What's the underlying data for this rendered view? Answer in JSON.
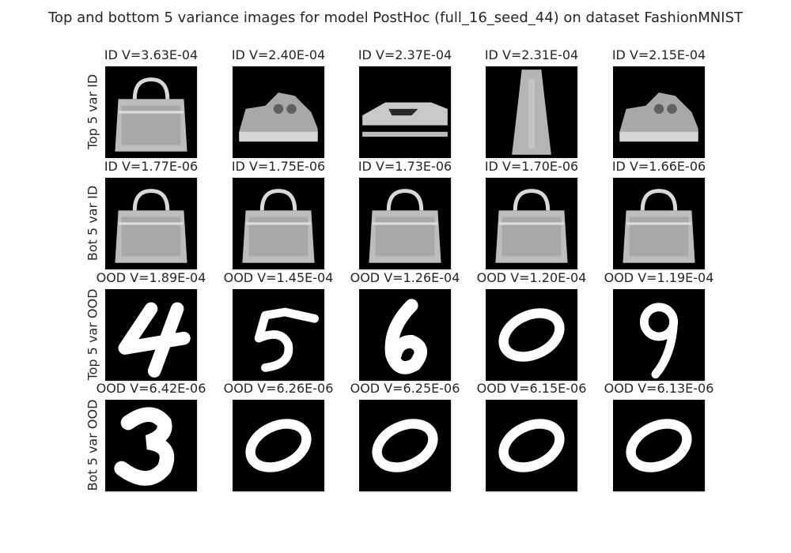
{
  "title": "Top and bottom 5 variance images for model PostHoc (full_16_seed_44) on dataset FashionMNIST",
  "chart_data": {
    "type": "image_grid",
    "title": "Top and bottom 5 variance images for model PostHoc (full_16_seed_44) on dataset FashionMNIST",
    "rows": [
      {
        "label": "Top 5 var ID",
        "cells": [
          {
            "title": "ID V=3.63E-04",
            "variance": 0.000363,
            "content": "bag"
          },
          {
            "title": "ID V=2.40E-04",
            "variance": 0.00024,
            "content": "sneaker"
          },
          {
            "title": "ID V=2.37E-04",
            "variance": 0.000237,
            "content": "sandal"
          },
          {
            "title": "ID V=2.31E-04",
            "variance": 0.000231,
            "content": "dress"
          },
          {
            "title": "ID V=2.15E-04",
            "variance": 0.000215,
            "content": "sneaker"
          }
        ]
      },
      {
        "label": "Bot 5 var ID",
        "cells": [
          {
            "title": "ID V=1.77E-06",
            "variance": 1.77e-06,
            "content": "bag"
          },
          {
            "title": "ID V=1.75E-06",
            "variance": 1.75e-06,
            "content": "bag"
          },
          {
            "title": "ID V=1.73E-06",
            "variance": 1.73e-06,
            "content": "bag"
          },
          {
            "title": "ID V=1.70E-06",
            "variance": 1.7e-06,
            "content": "bag"
          },
          {
            "title": "ID V=1.66E-06",
            "variance": 1.66e-06,
            "content": "bag"
          }
        ]
      },
      {
        "label": "Top 5 var OOD",
        "cells": [
          {
            "title": "OOD V=1.89E-04",
            "variance": 0.000189,
            "content": "digit-4"
          },
          {
            "title": "OOD V=1.45E-04",
            "variance": 0.000145,
            "content": "digit-5"
          },
          {
            "title": "OOD V=1.26E-04",
            "variance": 0.000126,
            "content": "digit-6"
          },
          {
            "title": "OOD V=1.20E-04",
            "variance": 0.00012,
            "content": "digit-0"
          },
          {
            "title": "OOD V=1.19E-04",
            "variance": 0.000119,
            "content": "digit-9"
          }
        ]
      },
      {
        "label": "Bot 5 var OOD",
        "cells": [
          {
            "title": "OOD V=6.42E-06",
            "variance": 6.42e-06,
            "content": "digit-3"
          },
          {
            "title": "OOD V=6.26E-06",
            "variance": 6.26e-06,
            "content": "digit-0"
          },
          {
            "title": "OOD V=6.25E-06",
            "variance": 6.25e-06,
            "content": "digit-0"
          },
          {
            "title": "OOD V=6.15E-06",
            "variance": 6.15e-06,
            "content": "digit-0"
          },
          {
            "title": "OOD V=6.13E-06",
            "variance": 6.13e-06,
            "content": "digit-0"
          }
        ]
      }
    ],
    "colormap": "gray",
    "grid": false
  }
}
